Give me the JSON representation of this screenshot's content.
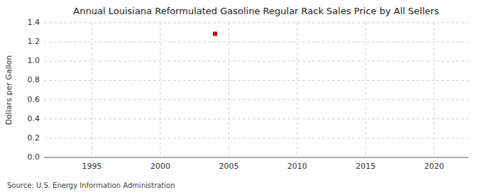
{
  "chart_data": {
    "type": "scatter",
    "title": "Annual Louisiana Reformulated Gasoline Regular Rack Sales Price by All Sellers",
    "y_label": "Dollars per Gallon",
    "source": "Source: U.S. Energy Information Administration",
    "x": [
      2004
    ],
    "values": [
      1.285
    ],
    "color": "#cc0000",
    "marker": "square",
    "xlim": [
      1991.5,
      2022.5
    ],
    "ylim": [
      0,
      1.4
    ],
    "xticks": [
      1995,
      2000,
      2005,
      2010,
      2015,
      2020
    ],
    "yticks": [
      {
        "value": 0,
        "label": "0.0"
      },
      0.2,
      0.4,
      0.6,
      0.8,
      {
        "value": 1,
        "label": "1.0"
      },
      1.2,
      1.4
    ],
    "grid": true
  }
}
